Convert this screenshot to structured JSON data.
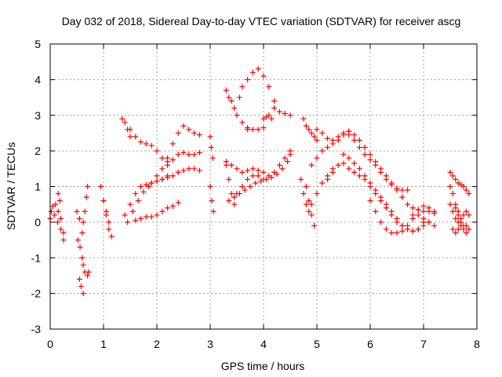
{
  "chart_data": {
    "type": "scatter",
    "title": "Day 032 of 2018, Sidereal Day-to-day VTEC variation (SDTVAR) for receiver ascg",
    "xlabel": "GPS time / hours",
    "ylabel": "SDTVAR / TECUs",
    "xlim": [
      0,
      8
    ],
    "ylim": [
      -3,
      5
    ],
    "x_ticks": [
      "0",
      "1",
      "2",
      "3",
      "4",
      "5",
      "6",
      "7",
      "8"
    ],
    "y_ticks": [
      "-3",
      "-2",
      "-1",
      "0",
      "1",
      "2",
      "3",
      "4",
      "5"
    ],
    "grid": true,
    "marker": "+",
    "color": "#ff0000",
    "tracks": [
      {
        "x": [
          0.0,
          0.05,
          0.1,
          0.15,
          0.2,
          0.25
        ],
        "y": [
          0.1,
          0.45,
          0.5,
          0.3,
          0.1,
          -0.3
        ]
      },
      {
        "x": [
          0.02,
          0.08,
          0.14,
          0.2,
          0.25
        ],
        "y": [
          0.3,
          0.2,
          0.0,
          -0.2,
          -0.5
        ]
      },
      {
        "x": [
          0.15,
          0.18
        ],
        "y": [
          0.8,
          0.6
        ]
      },
      {
        "x": [
          0.5,
          0.55,
          0.6
        ],
        "y": [
          0.3,
          0.1,
          -0.3
        ]
      },
      {
        "x": [
          0.52,
          0.56,
          0.6,
          0.62,
          0.65,
          0.7,
          0.72
        ],
        "y": [
          -0.5,
          -0.7,
          -1.0,
          -1.2,
          -1.4,
          -1.5,
          -1.4
        ]
      },
      {
        "x": [
          0.55,
          0.58,
          0.62
        ],
        "y": [
          -1.6,
          -1.8,
          -2.0
        ]
      },
      {
        "x": [
          0.62,
          0.65,
          0.68,
          0.7
        ],
        "y": [
          0.0,
          0.3,
          0.7,
          1.0
        ]
      },
      {
        "x": [
          0.95,
          1.0,
          1.05,
          1.1
        ],
        "y": [
          1.0,
          0.6,
          0.2,
          -0.2
        ]
      },
      {
        "x": [
          1.0,
          1.05,
          1.1,
          1.15
        ],
        "y": [
          0.6,
          0.3,
          0.0,
          -0.4
        ]
      },
      {
        "x": [
          1.35,
          1.4,
          1.45,
          1.5
        ],
        "y": [
          2.9,
          2.8,
          2.6,
          2.4
        ]
      },
      {
        "x": [
          1.5,
          1.6,
          1.7,
          1.8,
          1.9,
          2.0,
          2.1,
          2.2
        ],
        "y": [
          2.6,
          2.4,
          2.25,
          2.2,
          2.15,
          2.0,
          1.8,
          1.7
        ]
      },
      {
        "x": [
          2.2,
          2.3,
          2.4,
          2.5,
          2.6,
          2.7,
          2.8
        ],
        "y": [
          1.8,
          2.2,
          2.5,
          2.7,
          2.6,
          2.5,
          2.45
        ]
      },
      {
        "x": [
          1.4,
          1.5,
          1.6,
          1.7,
          1.8,
          1.9,
          2.0,
          2.1,
          2.2
        ],
        "y": [
          0.2,
          0.5,
          0.8,
          1.0,
          1.05,
          1.1,
          1.15,
          1.2,
          1.3
        ]
      },
      {
        "x": [
          1.45,
          1.55,
          1.65,
          1.75,
          1.85
        ],
        "y": [
          0.0,
          0.3,
          0.6,
          0.85,
          1.0
        ]
      },
      {
        "x": [
          2.0,
          2.1,
          2.2,
          2.3,
          2.4,
          2.5,
          2.6,
          2.7,
          2.8
        ],
        "y": [
          1.3,
          1.5,
          1.6,
          1.75,
          1.9,
          1.95,
          1.9,
          1.9,
          1.95
        ]
      },
      {
        "x": [
          1.9,
          2.0,
          2.1,
          2.2,
          2.3,
          2.4,
          2.5,
          2.6,
          2.7,
          2.8
        ],
        "y": [
          1.1,
          1.15,
          1.2,
          1.25,
          1.3,
          1.4,
          1.45,
          1.5,
          1.5,
          1.45
        ]
      },
      {
        "x": [
          1.6,
          1.7,
          1.8,
          1.9,
          2.0,
          2.1,
          2.2,
          2.3,
          2.4
        ],
        "y": [
          0.05,
          0.1,
          0.15,
          0.15,
          0.2,
          0.3,
          0.4,
          0.45,
          0.55
        ]
      },
      {
        "x": [
          3.0,
          3.02,
          3.05
        ],
        "y": [
          2.4,
          2.1,
          1.8
        ]
      },
      {
        "x": [
          3.0,
          3.03,
          3.06
        ],
        "y": [
          1.0,
          0.6,
          0.3
        ]
      },
      {
        "x": [
          3.3,
          3.35,
          3.4,
          3.45,
          3.5,
          3.6,
          3.7
        ],
        "y": [
          3.7,
          3.5,
          3.4,
          3.2,
          3.0,
          2.8,
          2.65
        ]
      },
      {
        "x": [
          3.7,
          3.8,
          3.9,
          4.0
        ],
        "y": [
          2.6,
          2.6,
          2.6,
          2.65
        ]
      },
      {
        "x": [
          3.55,
          3.6,
          3.7,
          3.8,
          3.9,
          4.0,
          4.1,
          4.2
        ],
        "y": [
          3.5,
          3.8,
          4.0,
          4.2,
          4.3,
          4.1,
          3.8,
          3.4
        ]
      },
      {
        "x": [
          4.2,
          4.3,
          4.4,
          4.5
        ],
        "y": [
          3.2,
          3.1,
          3.05,
          3.0
        ]
      },
      {
        "x": [
          4.0,
          4.05,
          4.1,
          4.15
        ],
        "y": [
          2.9,
          2.95,
          3.0,
          2.9
        ]
      },
      {
        "x": [
          3.3,
          3.35,
          3.4,
          3.45
        ],
        "y": [
          1.6,
          1.2,
          0.8,
          0.5
        ]
      },
      {
        "x": [
          3.35,
          3.45,
          3.55,
          3.65,
          3.75,
          3.85,
          3.95,
          4.05,
          4.15,
          4.25,
          4.35,
          4.45,
          4.5
        ],
        "y": [
          0.6,
          0.7,
          0.8,
          0.9,
          1.0,
          1.1,
          1.15,
          1.2,
          1.25,
          1.35,
          1.5,
          1.7,
          1.9
        ]
      },
      {
        "x": [
          3.3,
          3.4,
          3.5,
          3.6,
          3.7,
          3.8,
          3.9,
          4.0
        ],
        "y": [
          1.7,
          1.6,
          1.5,
          1.4,
          1.45,
          1.5,
          1.45,
          1.4
        ]
      },
      {
        "x": [
          3.5,
          3.6,
          3.7,
          3.8,
          3.9,
          4.0,
          4.1,
          4.2
        ],
        "y": [
          0.8,
          1.0,
          1.2,
          1.3,
          1.3,
          1.2,
          1.3,
          1.4
        ]
      },
      {
        "x": [
          4.3,
          4.4,
          4.5
        ],
        "y": [
          1.6,
          1.8,
          2.0
        ]
      },
      {
        "x": [
          4.75,
          4.8,
          4.85,
          4.9,
          4.95,
          5.0
        ],
        "y": [
          2.9,
          2.7,
          2.6,
          2.5,
          2.4,
          2.3
        ]
      },
      {
        "x": [
          4.8,
          4.85,
          4.9,
          4.95
        ],
        "y": [
          1.0,
          0.6,
          0.2,
          -0.1
        ]
      },
      {
        "x": [
          4.7,
          4.75,
          4.8,
          4.85
        ],
        "y": [
          1.2,
          0.8,
          0.5,
          0.3
        ]
      },
      {
        "x": [
          4.9,
          5.0,
          5.1,
          5.2,
          5.3
        ],
        "y": [
          0.5,
          0.8,
          1.1,
          1.3,
          1.5
        ]
      },
      {
        "x": [
          5.0,
          5.1,
          5.2,
          5.3,
          5.4,
          5.5,
          5.6,
          5.7,
          5.8,
          5.9,
          6.0,
          6.1,
          6.2,
          6.3,
          6.4,
          6.5,
          6.6,
          6.7
        ],
        "y": [
          2.6,
          2.5,
          2.35,
          2.3,
          2.4,
          2.5,
          2.45,
          2.3,
          2.1,
          1.9,
          1.75,
          1.6,
          1.4,
          1.2,
          1.05,
          0.95,
          0.9,
          0.9
        ]
      },
      {
        "x": [
          4.9,
          5.0,
          5.1,
          5.2,
          5.3,
          5.4,
          5.5,
          5.6
        ],
        "y": [
          1.6,
          1.8,
          2.0,
          2.1,
          2.2,
          2.3,
          2.45,
          2.55
        ]
      },
      {
        "x": [
          5.6,
          5.7,
          5.8,
          5.9,
          6.0,
          6.1,
          6.2,
          6.3,
          6.4,
          6.5,
          6.6,
          6.7,
          6.8,
          6.9,
          7.0,
          7.1,
          7.2
        ],
        "y": [
          2.55,
          2.45,
          2.3,
          2.1,
          1.9,
          1.7,
          1.5,
          1.3,
          1.1,
          0.9,
          0.7,
          0.5,
          0.4,
          0.35,
          0.3,
          0.3,
          0.25
        ]
      },
      {
        "x": [
          5.2,
          5.3,
          5.4,
          5.5,
          5.6,
          5.7,
          5.8,
          5.9,
          6.0,
          6.1,
          6.2,
          6.3,
          6.4,
          6.5,
          6.6,
          6.7,
          6.8,
          6.9,
          7.0,
          7.1
        ],
        "y": [
          1.2,
          1.4,
          1.6,
          1.65,
          1.5,
          1.4,
          1.3,
          1.2,
          1.0,
          0.8,
          0.6,
          0.4,
          0.2,
          0.0,
          -0.1,
          -0.2,
          -0.25,
          -0.2,
          -0.1,
          0.0
        ]
      },
      {
        "x": [
          5.5,
          5.6,
          5.7,
          5.8,
          5.9,
          6.0,
          6.1,
          6.2,
          6.3,
          6.4,
          6.5,
          6.6,
          6.7,
          6.8,
          6.9,
          7.0
        ],
        "y": [
          1.9,
          1.8,
          1.65,
          1.5,
          1.3,
          1.1,
          0.9,
          0.7,
          0.5,
          0.3,
          0.1,
          -0.1,
          -0.2,
          -0.25,
          -0.2,
          0.0
        ]
      },
      {
        "x": [
          6.0,
          6.1,
          6.2,
          6.3,
          6.4,
          6.5,
          6.6,
          6.7,
          6.8,
          6.9,
          7.0,
          7.1,
          7.2
        ],
        "y": [
          0.6,
          0.3,
          0.0,
          -0.2,
          -0.3,
          -0.3,
          -0.25,
          -0.1,
          0.1,
          0.2,
          0.1,
          0.0,
          -0.1
        ]
      },
      {
        "x": [
          6.8,
          6.9,
          7.0,
          7.1,
          7.2
        ],
        "y": [
          0.2,
          0.35,
          0.45,
          0.4,
          0.3
        ]
      },
      {
        "x": [
          7.5,
          7.55,
          7.6,
          7.65,
          7.7,
          7.75,
          7.8,
          7.85
        ],
        "y": [
          1.4,
          1.3,
          1.2,
          1.1,
          1.05,
          1.0,
          0.9,
          0.8
        ]
      },
      {
        "x": [
          7.5,
          7.55,
          7.6,
          7.65
        ],
        "y": [
          1.0,
          0.8,
          0.5,
          0.3
        ]
      },
      {
        "x": [
          7.5,
          7.55,
          7.6,
          7.65,
          7.7,
          7.75,
          7.8
        ],
        "y": [
          0.5,
          0.3,
          0.1,
          0.0,
          -0.1,
          -0.2,
          -0.1
        ]
      },
      {
        "x": [
          7.55,
          7.6,
          7.65,
          7.7,
          7.75,
          7.8,
          7.85
        ],
        "y": [
          -0.2,
          -0.3,
          -0.2,
          0.0,
          0.2,
          0.3,
          0.2
        ]
      },
      {
        "x": [
          7.6,
          7.65,
          7.7,
          7.75,
          7.8,
          7.85
        ],
        "y": [
          0.4,
          0.2,
          0.1,
          -0.1,
          -0.3,
          -0.2
        ]
      }
    ]
  }
}
